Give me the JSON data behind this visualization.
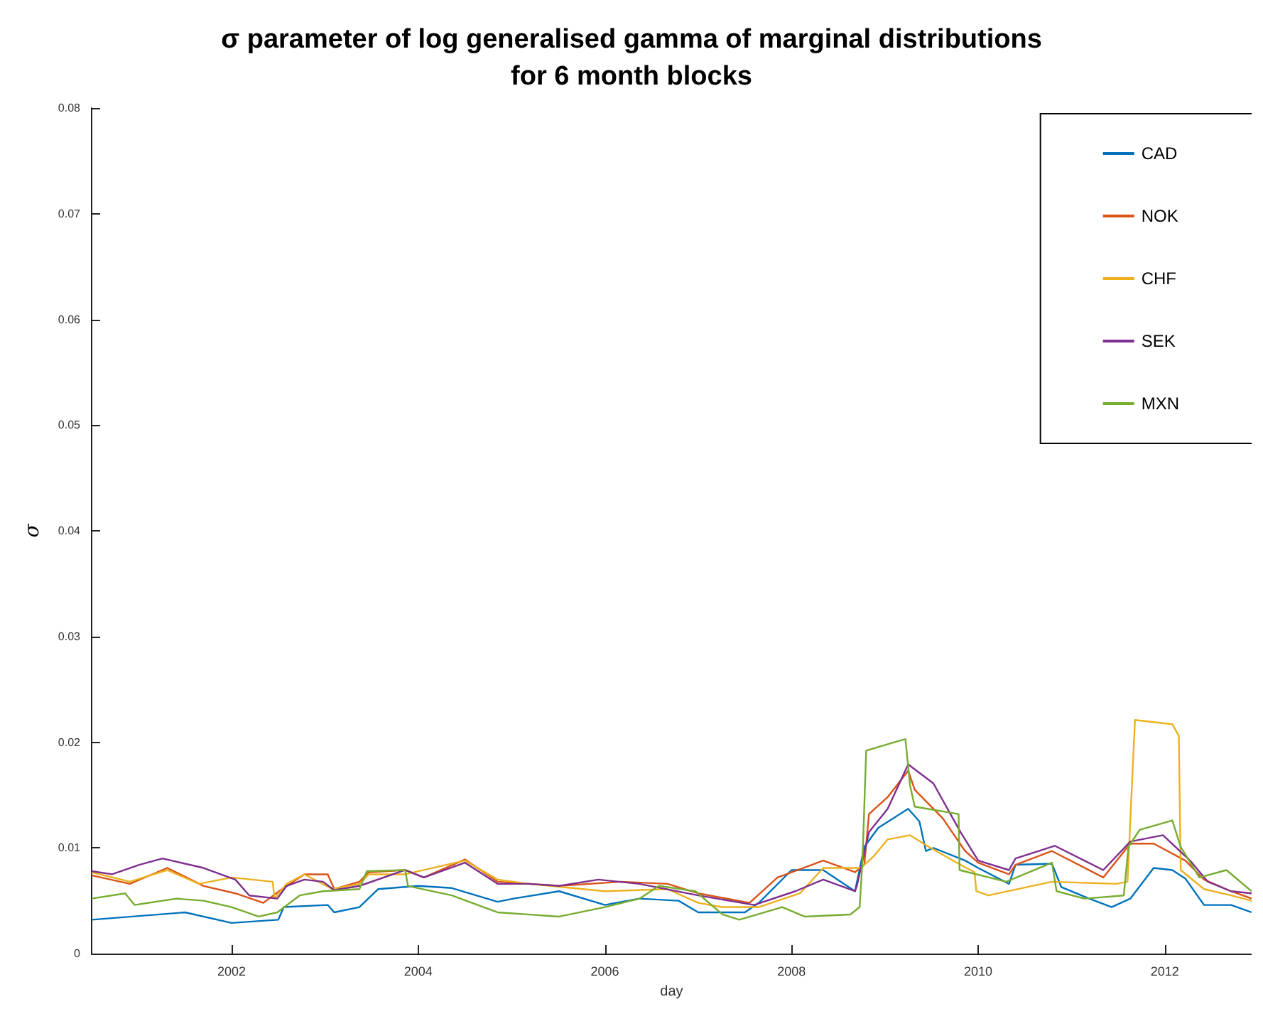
{
  "chart_data": {
    "type": "line",
    "title": "σ parameter of log generalised gamma of marginal distributions\nfor 6 month blocks",
    "xlabel": "day",
    "ylabel": "σ",
    "xlim": [
      2000.5,
      2012.93
    ],
    "ylim": [
      0,
      0.08
    ],
    "xticks": [
      2002,
      2004,
      2006,
      2008,
      2010,
      2012
    ],
    "yticks": [
      0,
      0.01,
      0.02,
      0.03,
      0.04,
      0.05,
      0.06,
      0.07,
      0.08
    ],
    "grid": false,
    "legend": "top right",
    "marker": "none",
    "series": [
      {
        "name": "CAD",
        "color": "#0072bd",
        "x": [
          2000.5,
          2001.5,
          2002.0,
          2002.5,
          2002.56,
          2003.03,
          2003.1,
          2003.37,
          2003.57,
          2004.0,
          2004.36,
          2004.85,
          2005.02,
          2005.51,
          2006.0,
          2006.37,
          2006.79,
          2007.0,
          2007.5,
          2007.65,
          2008.0,
          2008.34,
          2008.68,
          2008.78,
          2008.93,
          2009.25,
          2009.37,
          2009.44,
          2009.52,
          2009.86,
          2010.0,
          2010.33,
          2010.4,
          2010.79,
          2010.89,
          2011.19,
          2011.43,
          2011.63,
          2011.88,
          2012.08,
          2012.22,
          2012.42,
          2012.71,
          2012.93
        ],
        "values": [
          0.0032,
          0.0039,
          0.0029,
          0.0032,
          0.0044,
          0.0046,
          0.0039,
          0.0044,
          0.0061,
          0.0064,
          0.0062,
          0.0049,
          0.0052,
          0.0059,
          0.0046,
          0.0052,
          0.005,
          0.0039,
          0.0039,
          0.0048,
          0.0079,
          0.0079,
          0.0059,
          0.0101,
          0.0119,
          0.0137,
          0.0125,
          0.0097,
          0.01,
          0.0088,
          0.0081,
          0.0066,
          0.0084,
          0.0085,
          0.0063,
          0.0052,
          0.0044,
          0.0052,
          0.0081,
          0.0079,
          0.0071,
          0.0046,
          0.0046,
          0.0039
        ]
      },
      {
        "name": "NOK",
        "color": "#d95319",
        "x": [
          2000.5,
          2000.91,
          2001.31,
          2001.7,
          2002.04,
          2002.34,
          2002.54,
          2002.78,
          2003.03,
          2003.1,
          2003.37,
          2003.47,
          2003.86,
          2004.06,
          2004.5,
          2004.85,
          2005.51,
          2006.17,
          2006.67,
          2007.0,
          2007.55,
          2007.85,
          2008.34,
          2008.68,
          2008.78,
          2008.83,
          2009.03,
          2009.25,
          2009.32,
          2009.62,
          2009.86,
          2010.0,
          2010.33,
          2010.4,
          2010.79,
          2011.34,
          2011.63,
          2011.88,
          2012.22,
          2012.42,
          2012.71,
          2012.93
        ],
        "values": [
          0.0074,
          0.0066,
          0.0081,
          0.0064,
          0.0057,
          0.0048,
          0.0061,
          0.0075,
          0.0075,
          0.0061,
          0.0068,
          0.0077,
          0.0079,
          0.0072,
          0.0089,
          0.0068,
          0.0064,
          0.0068,
          0.0066,
          0.0057,
          0.0048,
          0.0072,
          0.0088,
          0.0077,
          0.0084,
          0.0132,
          0.0148,
          0.0173,
          0.0155,
          0.0128,
          0.0097,
          0.0086,
          0.0075,
          0.0084,
          0.0097,
          0.0072,
          0.0104,
          0.0104,
          0.0088,
          0.007,
          0.0059,
          0.0052
        ]
      },
      {
        "name": "CHF",
        "color": "#edb120",
        "x": [
          2000.5,
          2000.91,
          2001.31,
          2001.65,
          2002.0,
          2002.44,
          2002.46,
          2002.59,
          2002.78,
          2003.08,
          2003.37,
          2003.47,
          2003.86,
          2004.5,
          2004.85,
          2005.19,
          2006.0,
          2006.67,
          2007.0,
          2007.25,
          2007.65,
          2008.09,
          2008.34,
          2008.73,
          2008.78,
          2008.88,
          2009.03,
          2009.27,
          2009.47,
          2009.81,
          2009.96,
          2009.98,
          2010.11,
          2010.79,
          2011.48,
          2011.6,
          2011.63,
          2011.68,
          2012.08,
          2012.15,
          2012.17,
          2012.42,
          2012.71,
          2012.93
        ],
        "values": [
          0.0077,
          0.0068,
          0.0079,
          0.0066,
          0.0072,
          0.0068,
          0.0052,
          0.0066,
          0.0075,
          0.0061,
          0.0066,
          0.0075,
          0.0075,
          0.0088,
          0.007,
          0.0066,
          0.0059,
          0.0061,
          0.0048,
          0.0044,
          0.0044,
          0.0057,
          0.0081,
          0.0081,
          0.0084,
          0.0092,
          0.0108,
          0.0112,
          0.0101,
          0.0084,
          0.0077,
          0.0059,
          0.0055,
          0.0068,
          0.0066,
          0.0068,
          0.0126,
          0.0221,
          0.0217,
          0.0206,
          0.0079,
          0.0061,
          0.0055,
          0.005
        ]
      },
      {
        "name": "SEK",
        "color": "#7e2f8e",
        "x": [
          2000.5,
          2000.72,
          2001.01,
          2001.26,
          2001.7,
          2002.04,
          2002.19,
          2002.49,
          2002.59,
          2002.78,
          2002.98,
          2003.1,
          2003.37,
          2003.86,
          2004.06,
          2004.5,
          2004.85,
          2005.19,
          2005.51,
          2005.93,
          2006.37,
          2007.0,
          2007.6,
          2008.04,
          2008.34,
          2008.68,
          2008.7,
          2008.83,
          2009.03,
          2009.25,
          2009.52,
          2009.81,
          2010.0,
          2010.33,
          2010.4,
          2010.82,
          2011.34,
          2011.63,
          2011.98,
          2012.27,
          2012.46,
          2012.71,
          2012.93
        ],
        "values": [
          0.0078,
          0.0075,
          0.0084,
          0.009,
          0.0081,
          0.007,
          0.0055,
          0.0052,
          0.0064,
          0.007,
          0.0068,
          0.006,
          0.0064,
          0.0079,
          0.0072,
          0.0086,
          0.0066,
          0.0066,
          0.0064,
          0.007,
          0.0066,
          0.0055,
          0.0046,
          0.0059,
          0.007,
          0.0059,
          0.0064,
          0.0115,
          0.0137,
          0.0179,
          0.0161,
          0.0115,
          0.0088,
          0.0079,
          0.009,
          0.0102,
          0.0079,
          0.0106,
          0.0112,
          0.0088,
          0.0068,
          0.0059,
          0.0057
        ]
      },
      {
        "name": "MXN",
        "color": "#77ac30",
        "x": [
          2000.5,
          2000.86,
          2000.96,
          2001.41,
          2001.7,
          2002.0,
          2002.29,
          2002.49,
          2002.73,
          2002.98,
          2003.37,
          2003.45,
          2003.86,
          2003.89,
          2004.36,
          2004.85,
          2005.51,
          2006.0,
          2006.37,
          2006.58,
          2006.97,
          2007.26,
          2007.44,
          2007.9,
          2008.14,
          2008.63,
          2008.73,
          2008.76,
          2008.8,
          2009.22,
          2009.27,
          2009.32,
          2009.79,
          2009.8,
          2010.3,
          2010.79,
          2010.84,
          2011.14,
          2011.56,
          2011.61,
          2011.73,
          2012.08,
          2012.17,
          2012.37,
          2012.66,
          2012.93
        ],
        "values": [
          0.0052,
          0.0057,
          0.0046,
          0.0052,
          0.005,
          0.0044,
          0.0035,
          0.0039,
          0.0055,
          0.0059,
          0.0061,
          0.0078,
          0.0079,
          0.0064,
          0.0055,
          0.0039,
          0.0035,
          0.0044,
          0.0052,
          0.0064,
          0.0059,
          0.0037,
          0.0032,
          0.0044,
          0.0035,
          0.0037,
          0.0044,
          0.0088,
          0.0192,
          0.0203,
          0.0159,
          0.0139,
          0.0132,
          0.0079,
          0.0068,
          0.0086,
          0.0059,
          0.0052,
          0.0055,
          0.0101,
          0.0117,
          0.0126,
          0.0101,
          0.0072,
          0.0079,
          0.0059
        ]
      }
    ]
  }
}
